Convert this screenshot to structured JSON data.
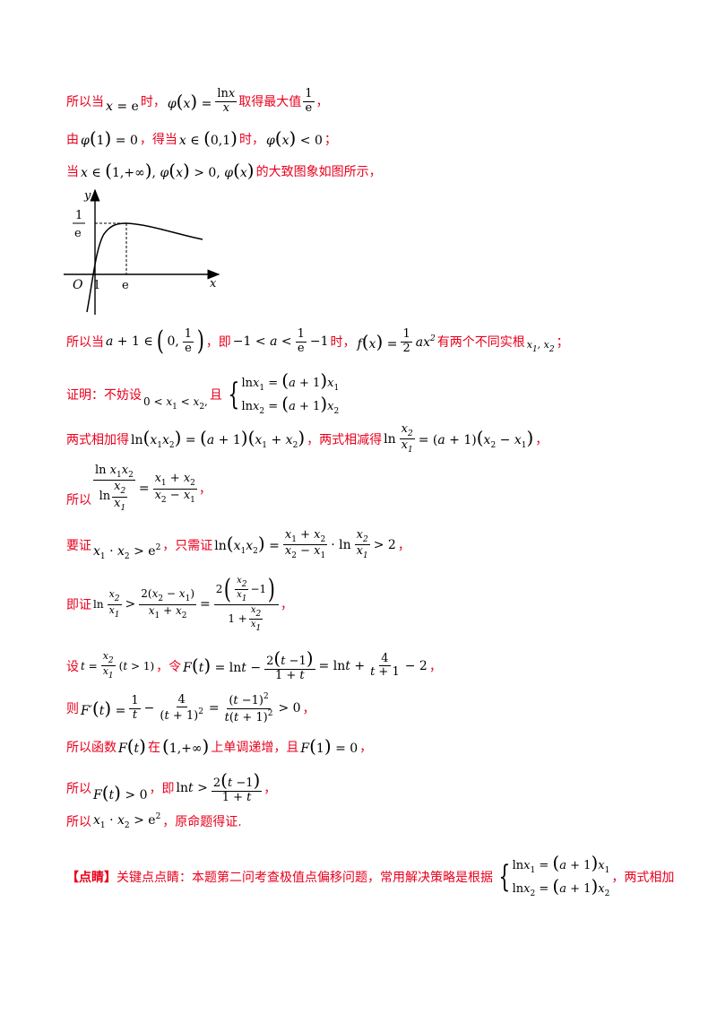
{
  "lines": {
    "l1": {
      "a": "所以当",
      "b": "时，",
      "c": "取得最大值",
      "d": "，"
    },
    "l2": {
      "a": "由",
      "b": "，得当",
      "c": "时，",
      "d": "；"
    },
    "l3": {
      "a": "当",
      "b": "的大致图象如图所示，"
    },
    "l4": {
      "a": "所以当",
      "b": "，即",
      "c": "时，",
      "d": "有两个不同实根",
      "e": "；"
    },
    "l5": {
      "a": "证明：不妨设",
      "b": "且"
    },
    "l6": {
      "a": "两式相加得",
      "b": "，两式相减得",
      "c": "，"
    },
    "l7": {
      "a": "所以",
      "b": "，"
    },
    "l8": {
      "a": "要证",
      "b": "，只需证",
      "c": "，"
    },
    "l9": {
      "a": "即证",
      "b": "，"
    },
    "l10": {
      "a": "设",
      "b": "，令",
      "c": "，"
    },
    "l11": {
      "a": "则",
      "b": "，"
    },
    "l12": {
      "a": "所以函数",
      "b": "在",
      "c": "上单调递增，且",
      "d": "，"
    },
    "l13": {
      "a": "所以",
      "b": "，即",
      "c": "，"
    },
    "l14": {
      "a": "所以",
      "b": "，原命题得证."
    },
    "l15": {
      "tag": "【点睛】",
      "a": "关键点点睛：本题第二问考查极值点偏移问题，常用解决策略是根据",
      "b": "，两式相加"
    }
  },
  "graph": {
    "y_label": "y",
    "x_label": "x",
    "origin": "O",
    "x_tick_one": "1",
    "x_tick_e": "e",
    "y_tick_num": "1",
    "y_tick_den": "e"
  }
}
